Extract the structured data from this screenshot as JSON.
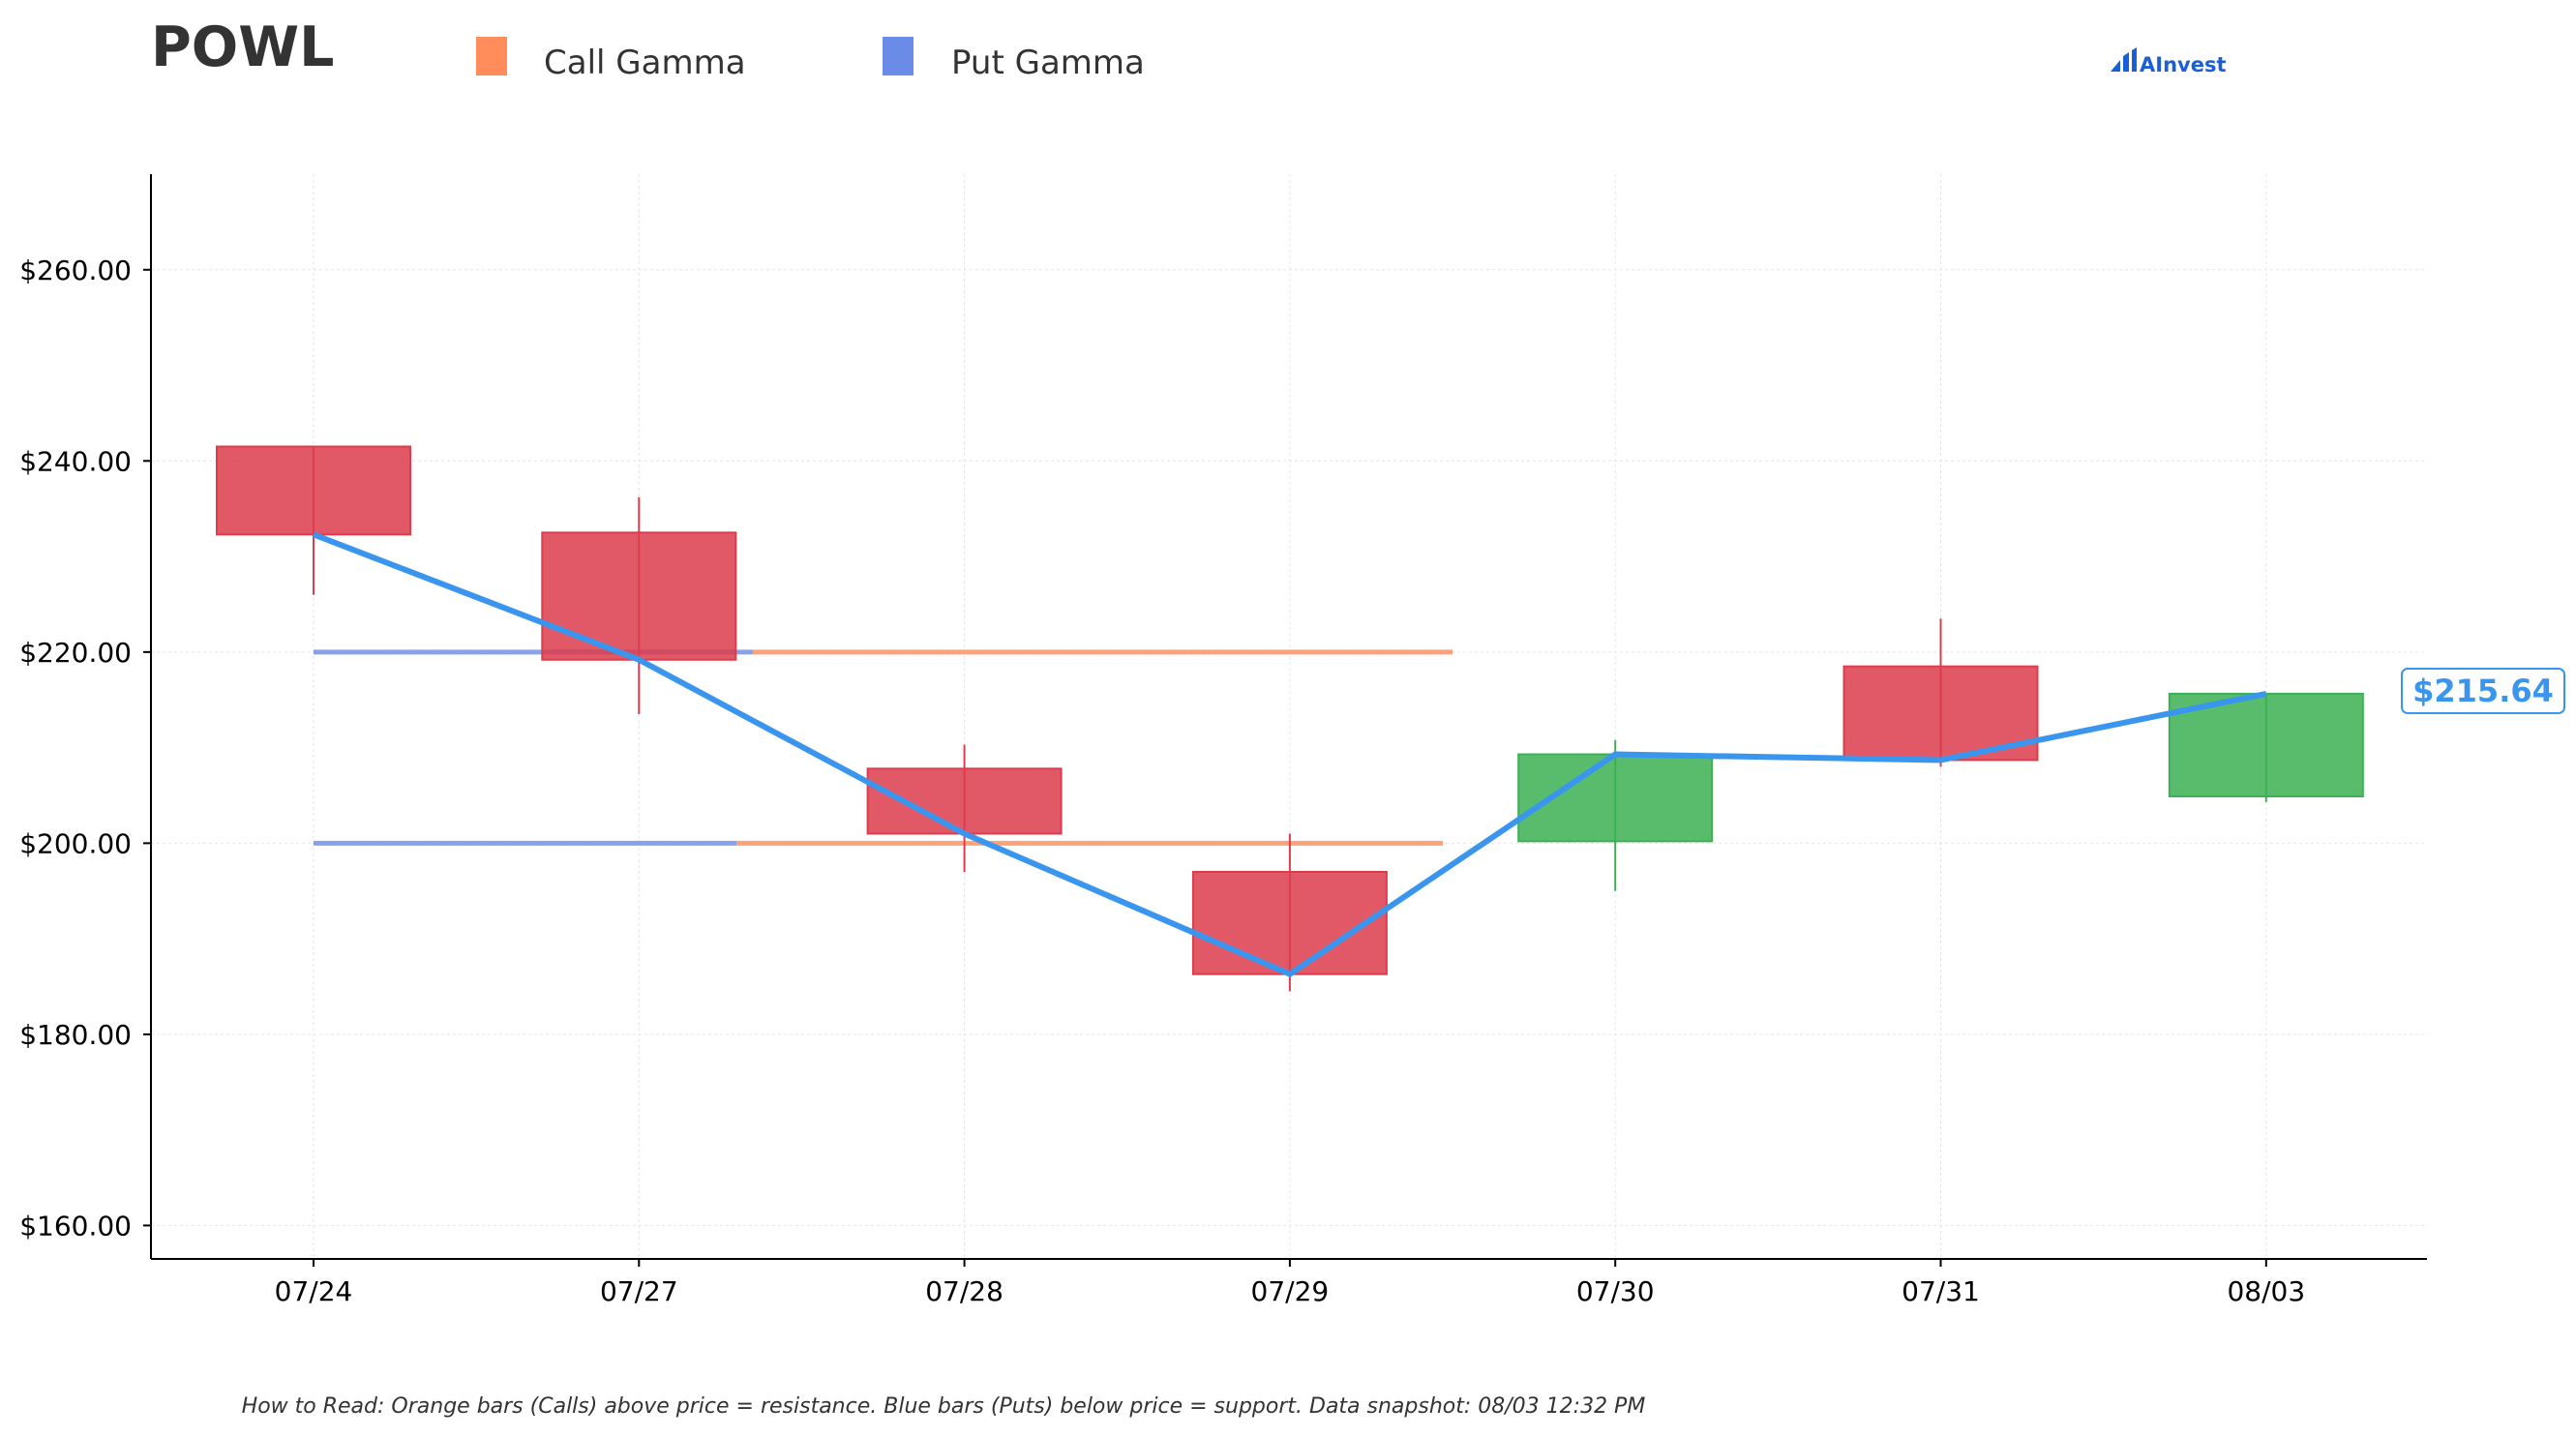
{
  "chart_data": {
    "type": "candlestick",
    "title": "POWL",
    "legend": [
      {
        "name": "Call Gamma",
        "color": "#ff8c5a"
      },
      {
        "name": "Put Gamma",
        "color": "#6b8be8"
      }
    ],
    "categories": [
      "07/24",
      "07/27",
      "07/28",
      "07/29",
      "07/30",
      "07/31",
      "08/03"
    ],
    "candles": [
      {
        "date": "07/24",
        "open": 241.5,
        "high": 241.5,
        "low": 226.0,
        "close": 232.3
      },
      {
        "date": "07/27",
        "open": 232.5,
        "high": 236.2,
        "low": 213.5,
        "close": 219.2
      },
      {
        "date": "07/28",
        "open": 207.8,
        "high": 210.3,
        "low": 197.0,
        "close": 201.0
      },
      {
        "date": "07/29",
        "open": 197.0,
        "high": 201.0,
        "low": 184.5,
        "close": 186.3
      },
      {
        "date": "07/30",
        "open": 200.2,
        "high": 210.8,
        "low": 195.0,
        "close": 209.3
      },
      {
        "date": "07/31",
        "open": 218.5,
        "high": 223.5,
        "low": 208.0,
        "close": 208.7
      },
      {
        "date": "08/03",
        "open": 204.9,
        "high": 215.6,
        "low": 204.3,
        "close": 215.64
      }
    ],
    "close_line": [
      232.3,
      219.2,
      201.0,
      186.3,
      209.3,
      208.7,
      215.64
    ],
    "gamma_levels": [
      {
        "type": "put",
        "price": 220,
        "from": "07/24",
        "to": "07/27",
        "to_offset": 0.35
      },
      {
        "type": "call",
        "price": 220,
        "from": "07/27",
        "from_offset": 0.35,
        "to": "07/29",
        "to_offset": 0.5
      },
      {
        "type": "put",
        "price": 200,
        "from": "07/24",
        "to": "07/27",
        "to_offset": 0.3
      },
      {
        "type": "call",
        "price": 200,
        "from": "07/27",
        "from_offset": 0.3,
        "to": "07/29",
        "to_offset": 0.47
      }
    ],
    "yticks": [
      160,
      180,
      200,
      220,
      240,
      260
    ],
    "ytick_labels": [
      "$160.00",
      "$180.00",
      "$200.00",
      "$220.00",
      "$240.00",
      "$260.00"
    ],
    "ylim": [
      156.5,
      270
    ],
    "current_price_label": "$215.64",
    "grid": true,
    "legend_position": "top",
    "colors": {
      "up": "#3cb054",
      "down": "#dc3c4b",
      "line": "#3a95ee",
      "call": "#ff8c5a",
      "put": "#6b8be8"
    }
  },
  "brand": "AInvest",
  "footnote": "How to Read: Orange bars (Calls) above price = resistance. Blue bars (Puts) below price = support. Data snapshot: 08/03 12:32 PM"
}
